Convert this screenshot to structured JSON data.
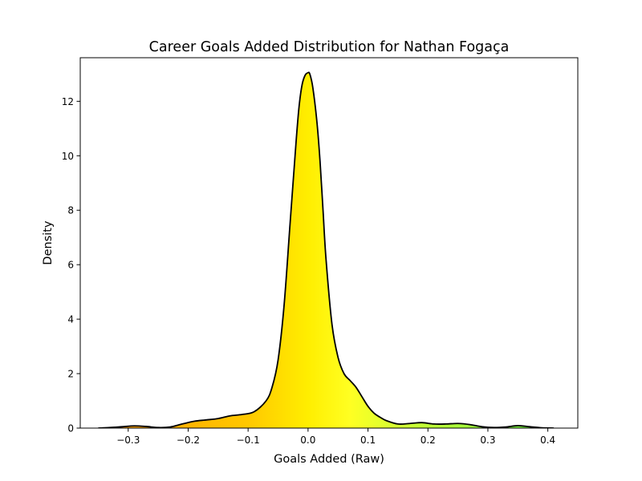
{
  "chart_data": {
    "type": "area",
    "title": "Career Goals Added Distribution for Nathan Fogaça",
    "xlabel": "Goals Added (Raw)",
    "ylabel": "Density",
    "xlim": [
      -0.38,
      0.45
    ],
    "ylim": [
      0,
      13.6
    ],
    "xticks": [
      -0.3,
      -0.2,
      -0.1,
      0.0,
      0.1,
      0.2,
      0.3,
      0.4
    ],
    "xtick_labels": [
      "−0.3",
      "−0.2",
      "−0.1",
      "0.0",
      "0.1",
      "0.2",
      "0.3",
      "0.4"
    ],
    "yticks": [
      0,
      2,
      4,
      6,
      8,
      10,
      12
    ],
    "ytick_labels": [
      "0",
      "2",
      "4",
      "6",
      "8",
      "10",
      "12"
    ],
    "grid": false,
    "series": [
      {
        "line_color": "#000000",
        "fill_gradient": [
          {
            "x": -0.35,
            "color": "#ff9900"
          },
          {
            "x": -0.1,
            "color": "#ffc800"
          },
          {
            "x": 0.0,
            "color": "#ffee00"
          },
          {
            "x": 0.07,
            "color": "#ffff22"
          },
          {
            "x": 0.15,
            "color": "#d4ff33"
          },
          {
            "x": 0.41,
            "color": "#66ff44"
          }
        ],
        "x": [
          -0.35,
          -0.33,
          -0.31,
          -0.29,
          -0.27,
          -0.25,
          -0.23,
          -0.21,
          -0.19,
          -0.17,
          -0.15,
          -0.13,
          -0.11,
          -0.09,
          -0.07,
          -0.06,
          -0.05,
          -0.04,
          -0.03,
          -0.02,
          -0.015,
          -0.01,
          -0.005,
          0.0,
          0.003,
          0.008,
          0.015,
          0.02,
          0.025,
          0.03,
          0.04,
          0.05,
          0.06,
          0.07,
          0.08,
          0.09,
          0.1,
          0.11,
          0.12,
          0.13,
          0.15,
          0.17,
          0.19,
          0.21,
          0.23,
          0.25,
          0.27,
          0.29,
          0.31,
          0.33,
          0.35,
          0.37,
          0.39,
          0.41
        ],
        "y": [
          0.0,
          0.02,
          0.05,
          0.08,
          0.06,
          0.02,
          0.04,
          0.15,
          0.25,
          0.3,
          0.35,
          0.45,
          0.5,
          0.6,
          1.0,
          1.5,
          2.5,
          4.5,
          7.5,
          10.5,
          11.8,
          12.6,
          12.95,
          13.05,
          13.0,
          12.5,
          11.2,
          9.8,
          8.0,
          6.2,
          3.8,
          2.6,
          2.0,
          1.75,
          1.5,
          1.15,
          0.8,
          0.55,
          0.4,
          0.28,
          0.15,
          0.17,
          0.2,
          0.15,
          0.15,
          0.17,
          0.13,
          0.05,
          0.02,
          0.04,
          0.09,
          0.05,
          0.01,
          0.0
        ]
      }
    ]
  }
}
